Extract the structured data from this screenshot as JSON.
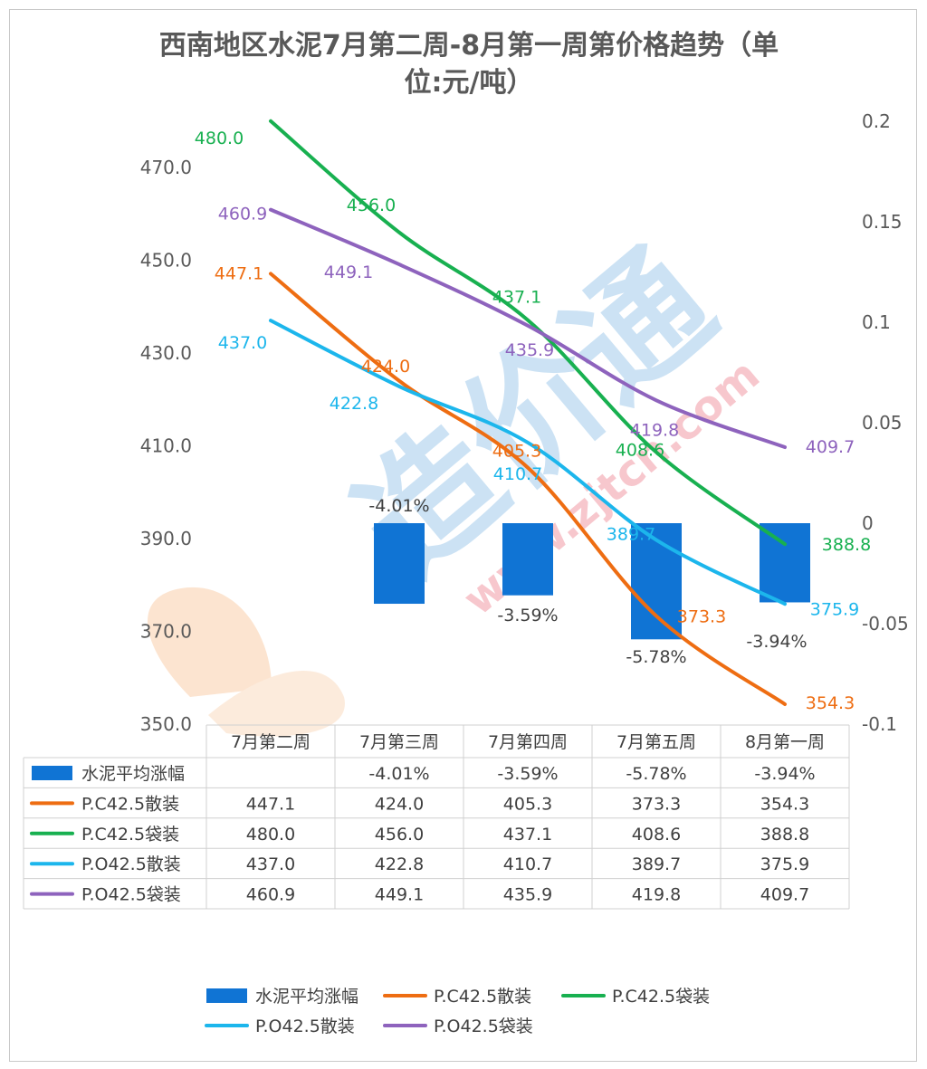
{
  "chart_data": {
    "type": "line",
    "title_line1": "西南地区水泥7月第二周-8月第一周第价格趋势（单",
    "title_line2": "位:元/吨）",
    "categories": [
      "7月第二周",
      "7月第三周",
      "7月第四周",
      "7月第五周",
      "8月第一周"
    ],
    "y_left": {
      "min": 350,
      "max": 480,
      "ticks": [
        "470.0",
        "450.0",
        "430.0",
        "410.0",
        "390.0",
        "370.0",
        "350.0"
      ],
      "tick_values": [
        470,
        450,
        430,
        410,
        390,
        370,
        350
      ]
    },
    "y_right": {
      "min": -0.1,
      "max": 0.2,
      "ticks": [
        "0.2",
        "0.15",
        "0.1",
        "0.05",
        "0",
        "-0.05",
        "-0.1"
      ],
      "tick_values": [
        0.2,
        0.15,
        0.1,
        0.05,
        0,
        -0.05,
        -0.1
      ]
    },
    "bar_series": {
      "name": "水泥平均涨幅",
      "color": "#1074d4",
      "values": [
        null,
        -0.0401,
        -0.0359,
        -0.0578,
        -0.0394
      ],
      "labels": [
        "",
        "-4.01%",
        "-3.59%",
        "-5.78%",
        "-3.94%"
      ]
    },
    "series": [
      {
        "name": "P.C42.5散装",
        "color": "#ee6d12",
        "values": [
          447.1,
          424.0,
          405.3,
          373.3,
          354.3
        ],
        "labels": [
          "447.1",
          "424.0",
          "405.3",
          "373.3",
          "354.3"
        ]
      },
      {
        "name": "P.C42.5袋装",
        "color": "#18b050",
        "values": [
          480.0,
          456.0,
          437.1,
          408.6,
          388.8
        ],
        "labels": [
          "480.0",
          "456.0",
          "437.1",
          "408.6",
          "388.8"
        ]
      },
      {
        "name": "P.O42.5散装",
        "color": "#1cb6ec",
        "values": [
          437.0,
          422.8,
          410.7,
          389.7,
          375.9
        ],
        "labels": [
          "437.0",
          "422.8",
          "410.7",
          "389.7",
          "375.9"
        ]
      },
      {
        "name": "P.O42.5袋装",
        "color": "#8e63bd",
        "values": [
          460.9,
          449.1,
          435.9,
          419.8,
          409.7
        ],
        "labels": [
          "460.9",
          "449.1",
          "435.9",
          "419.8",
          "409.7"
        ]
      }
    ],
    "legend_position": "bottom"
  },
  "watermark": {
    "text_cn": "造价通",
    "text_url": "www.zjtcn.com"
  }
}
